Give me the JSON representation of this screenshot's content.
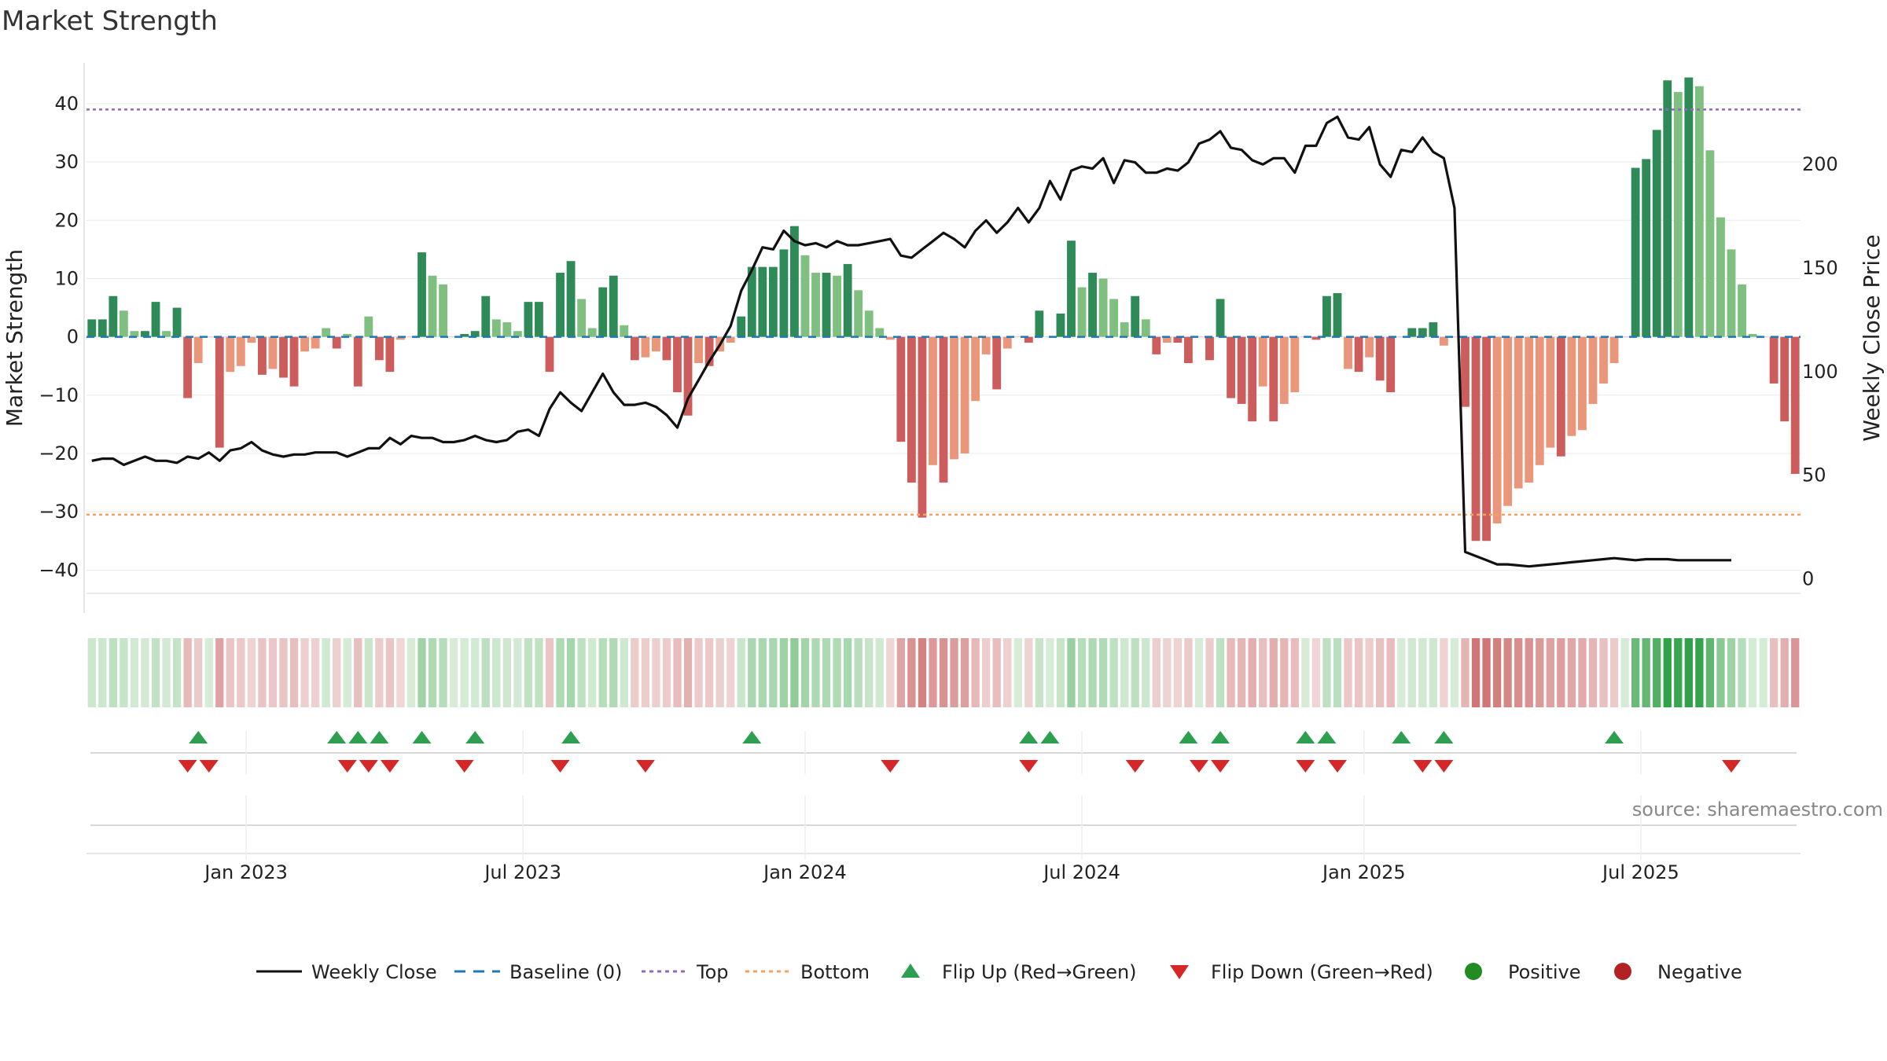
{
  "chart_data": {
    "type": "bar",
    "title": "Market Strength",
    "ylabel": "Market Strength",
    "y2label": "Weekly Close Price",
    "ylim": [
      -44,
      47
    ],
    "y2lim": [
      -7,
      249
    ],
    "y_ticks": [
      40,
      30,
      20,
      10,
      0,
      -10,
      -20,
      -30,
      -40
    ],
    "y_tick_labels": [
      "40",
      "30",
      "20",
      "10",
      "0",
      "−10",
      "−20",
      "−30",
      "−40"
    ],
    "y2_ticks": [
      200,
      150,
      100,
      50,
      0
    ],
    "y2_tick_labels": [
      "200",
      "150",
      "100",
      "50",
      "0"
    ],
    "x_ticks": [
      {
        "label": "Jan 2023",
        "week": 15
      },
      {
        "label": "Jul 2023",
        "week": 41
      },
      {
        "label": "Jan 2024",
        "week": 67.5
      },
      {
        "label": "Jul 2024",
        "week": 93.5
      },
      {
        "label": "Jan 2025",
        "week": 120
      },
      {
        "label": "Jul 2025",
        "week": 146
      }
    ],
    "top_level": 39,
    "bottom_level": -30.5,
    "strength": [
      3,
      3,
      7,
      4.5,
      1,
      1,
      6,
      1,
      5,
      -10.5,
      -4.5,
      0,
      -19,
      -6,
      -5,
      -1,
      -6.5,
      -5.5,
      -7,
      -8.5,
      -2.5,
      -2,
      1.5,
      -2,
      0.5,
      -8.5,
      3.5,
      -4,
      -6,
      -0.5,
      0,
      14.5,
      10.5,
      9,
      0,
      0.5,
      1,
      7,
      3,
      2.5,
      1,
      6,
      6,
      -6,
      11,
      13,
      6.5,
      1.5,
      8.5,
      10.5,
      2,
      -4,
      -3.5,
      -2.5,
      -4,
      -9.5,
      -13.5,
      -4.5,
      -5,
      -2.5,
      -1,
      3.5,
      12,
      12,
      12,
      15,
      19,
      14,
      11,
      11,
      10.5,
      12.5,
      8,
      4.5,
      1.5,
      -0.5,
      -18,
      -25,
      -31,
      -22,
      -25,
      -21,
      -20,
      -11,
      -3,
      -9,
      -2,
      0,
      -1,
      4.5,
      0,
      4,
      16.5,
      8.5,
      11,
      10,
      6.5,
      2.5,
      7,
      3,
      -3,
      -1,
      -1,
      -4.5,
      0,
      -4,
      6.5,
      -10.5,
      -11.5,
      -14.5,
      -8.5,
      -14.5,
      -11.5,
      -9.5,
      0,
      -0.5,
      7,
      7.5,
      -5.5,
      -6,
      -3.5,
      -7.5,
      -9.5,
      0,
      1.5,
      1.5,
      2.5,
      -1.5,
      0,
      -12,
      -35,
      -35,
      -32,
      -29,
      -26,
      -25,
      -22,
      -19,
      -20.5,
      -17,
      -16,
      -11.5,
      -8,
      -4.5,
      0,
      29,
      30.5,
      35.5,
      44,
      42,
      44.5,
      43,
      32,
      20.5,
      15,
      9,
      0.5,
      0,
      -8,
      -14.5,
      -23.5
    ],
    "weekly_close": [
      57,
      58,
      58,
      55,
      57,
      59,
      57,
      57,
      56,
      59,
      58,
      61,
      57,
      62,
      63,
      66,
      62,
      60,
      59,
      60,
      60,
      61,
      61,
      61,
      59,
      61,
      63,
      63,
      68,
      65,
      69,
      68,
      68,
      66,
      66,
      67,
      69,
      67,
      66,
      67,
      71,
      72,
      69,
      82,
      90,
      85,
      81,
      90,
      99,
      90,
      84,
      84,
      85,
      83,
      79,
      73,
      87,
      96,
      105,
      113,
      122,
      139,
      149,
      160,
      159,
      168,
      163,
      161,
      162,
      160,
      163,
      161,
      161,
      162,
      163,
      164,
      156,
      155,
      159,
      163,
      167,
      164,
      160,
      168,
      173,
      167,
      172,
      179,
      172,
      179,
      192,
      183,
      197,
      199,
      198,
      203,
      191,
      202,
      201,
      196,
      196,
      198,
      197,
      201,
      210,
      212,
      216,
      208,
      207,
      202,
      200,
      203,
      203,
      196,
      209,
      209,
      220,
      223,
      213,
      212,
      218,
      200,
      194,
      207,
      206,
      213,
      206,
      203,
      179,
      13,
      11,
      9,
      7,
      7,
      6.5,
      6,
      6.5,
      7,
      7.5,
      8,
      8.5,
      9,
      9.5,
      10,
      9.5,
      9,
      9.5,
      9.5,
      9.5,
      9,
      9,
      9,
      9,
      9,
      9
    ],
    "flip_up_weeks": [
      10,
      23,
      25,
      27,
      31,
      36,
      45,
      62,
      88,
      90,
      103,
      106,
      114,
      116,
      123,
      127,
      143
    ],
    "flip_down_weeks": [
      9,
      11,
      24,
      26,
      28,
      35,
      44,
      52,
      75,
      88,
      98,
      104,
      106,
      114,
      117,
      125,
      127,
      154
    ],
    "series": [
      {
        "name": "Weekly Close",
        "color": "#111111"
      },
      {
        "name": "Baseline (0)",
        "color": "#1f77b4"
      },
      {
        "name": "Top",
        "color": "#9467bd"
      },
      {
        "name": "Bottom",
        "color": "#f4a261"
      },
      {
        "name": "Flip Up (Red→Green)",
        "color": "#2e9e4f"
      },
      {
        "name": "Flip Down (Green→Red)",
        "color": "#d62728"
      },
      {
        "name": "Positive",
        "color": "#228b22"
      },
      {
        "name": "Negative",
        "color": "#b22222"
      }
    ],
    "legend_position": "bottom",
    "grid": true
  },
  "source_text": "source: sharemaestro.com",
  "colors": {
    "pos_dark": "#2e8b57",
    "pos_light": "#7fbf7f",
    "neg_dark": "#cd5c5c",
    "neg_light": "#e9967a"
  }
}
